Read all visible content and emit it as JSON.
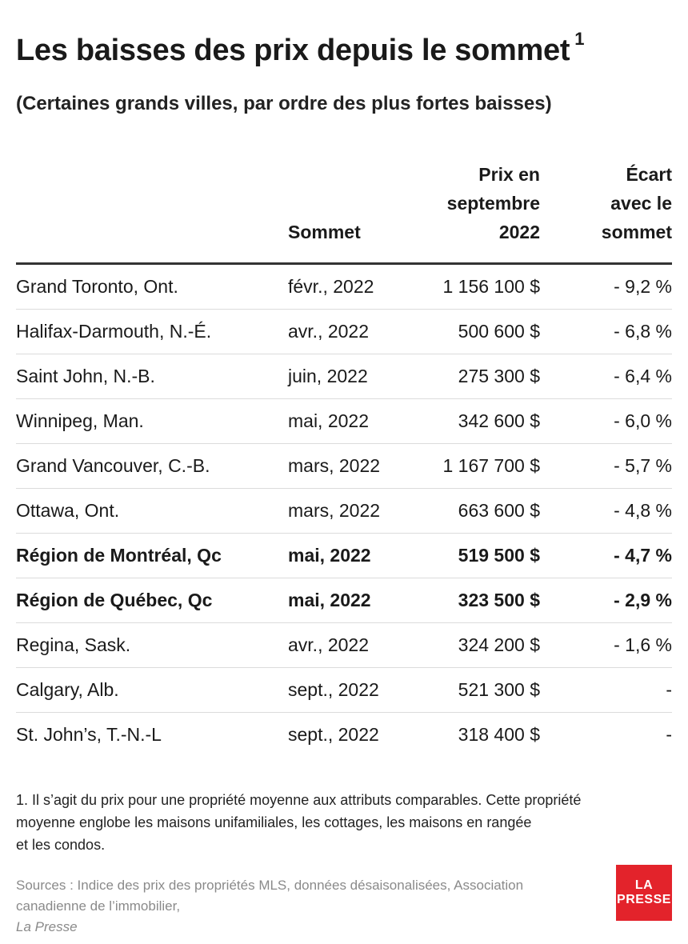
{
  "chart_data": {
    "type": "table",
    "title": "Les baisses des prix depuis le sommet",
    "title_footnote_mark": "1",
    "subtitle": "(Certaines grands villes, par ordre des plus fortes baisses)",
    "columns": {
      "city": "",
      "peak": "Sommet",
      "price": [
        "Prix en",
        "septembre",
        "2022"
      ],
      "gap": [
        "Écart",
        "avec le",
        "sommet"
      ]
    },
    "rows": [
      {
        "city": "Grand Toronto, Ont.",
        "peak": "févr., 2022",
        "price": "1 156 100 $",
        "gap": "- 9,2 %",
        "price_value": 1156100,
        "gap_value": -9.2,
        "bold": false
      },
      {
        "city": "Halifax-Darmouth, N.-É.",
        "peak": "avr., 2022",
        "price": "500 600 $",
        "gap": "- 6,8 %",
        "price_value": 500600,
        "gap_value": -6.8,
        "bold": false
      },
      {
        "city": "Saint John, N.-B.",
        "peak": "juin, 2022",
        "price": "275 300 $",
        "gap": "- 6,4 %",
        "price_value": 275300,
        "gap_value": -6.4,
        "bold": false
      },
      {
        "city": "Winnipeg, Man.",
        "peak": "mai, 2022",
        "price": "342 600 $",
        "gap": "- 6,0 %",
        "price_value": 342600,
        "gap_value": -6.0,
        "bold": false
      },
      {
        "city": "Grand Vancouver, C.-B.",
        "peak": "mars, 2022",
        "price": "1 167 700 $",
        "gap": "- 5,7 %",
        "price_value": 1167700,
        "gap_value": -5.7,
        "bold": false
      },
      {
        "city": "Ottawa, Ont.",
        "peak": "mars, 2022",
        "price": "663 600 $",
        "gap": "- 4,8 %",
        "price_value": 663600,
        "gap_value": -4.8,
        "bold": false
      },
      {
        "city": "Région de Montréal, Qc",
        "peak": "mai, 2022",
        "price": "519 500 $",
        "gap": "- 4,7 %",
        "price_value": 519500,
        "gap_value": -4.7,
        "bold": true
      },
      {
        "city": "Région de Québec, Qc",
        "peak": "mai, 2022",
        "price": "323 500 $",
        "gap": "- 2,9 %",
        "price_value": 323500,
        "gap_value": -2.9,
        "bold": true
      },
      {
        "city": "Regina, Sask.",
        "peak": "avr., 2022",
        "price": "324 200 $",
        "gap": "- 1,6 %",
        "price_value": 324200,
        "gap_value": -1.6,
        "bold": false
      },
      {
        "city": "Calgary, Alb.",
        "peak": "sept., 2022",
        "price": "521 300 $",
        "gap": "-",
        "price_value": 521300,
        "gap_value": null,
        "bold": false
      },
      {
        "city": "St. John’s, T.-N.-L",
        "peak": "sept., 2022",
        "price": "318 400 $",
        "gap": "-",
        "price_value": 318400,
        "gap_value": null,
        "bold": false
      }
    ],
    "footnote": [
      "1. Il s’agit du prix pour une propriété moyenne aux attributs comparables. Cette propriété",
      "moyenne englobe les maisons unifamiliales, les cottages, les maisons en rangée",
      "et les condos."
    ],
    "source": {
      "line1": "Sources : Indice des prix des propriétés MLS, données désaisonalisées, Association",
      "line2_prefix": "canadienne de l’immobilier, ",
      "line2_italic": "La Presse"
    }
  },
  "logo": {
    "line1": "LA",
    "line2": "PRESSE",
    "color": "#e3232b"
  },
  "colors": {
    "text": "#1a1a1a",
    "rule": "#333333",
    "row_divider": "#dcdcdc",
    "source": "#8a8a8a"
  }
}
